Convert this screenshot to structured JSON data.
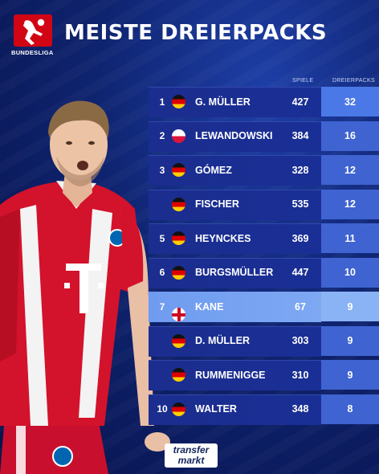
{
  "brand": {
    "logo_text": "BUNDESLIGA"
  },
  "title": "MEISTE DREIERPACKS",
  "columns": {
    "games": "SPIELE",
    "hattricks": "DREIERPACKS"
  },
  "rows": [
    {
      "rank": "1",
      "flag": "germany-flag-icon",
      "name": "G. MÜLLER",
      "games": "427",
      "hattricks": "32"
    },
    {
      "rank": "2",
      "flag": "poland-flag-icon",
      "name": "LEWANDOWSKI",
      "games": "384",
      "hattricks": "16"
    },
    {
      "rank": "3",
      "flag": "germany-flag-icon",
      "name": "GÓMEZ",
      "games": "328",
      "hattricks": "12"
    },
    {
      "rank": "",
      "flag": "germany-flag-icon",
      "name": "FISCHER",
      "games": "535",
      "hattricks": "12"
    },
    {
      "rank": "5",
      "flag": "germany-flag-icon",
      "name": "HEYNCKES",
      "games": "369",
      "hattricks": "11"
    },
    {
      "rank": "6",
      "flag": "germany-flag-icon",
      "name": "BURGSMÜLLER",
      "games": "447",
      "hattricks": "10"
    },
    {
      "rank": "7",
      "flag": "england-flag-icon",
      "name": "KANE",
      "games": "67",
      "hattricks": "9"
    },
    {
      "rank": "",
      "flag": "germany-flag-icon",
      "name": "D. MÜLLER",
      "games": "303",
      "hattricks": "9"
    },
    {
      "rank": "",
      "flag": "germany-flag-icon",
      "name": "RUMMENIGGE",
      "games": "310",
      "hattricks": "9"
    },
    {
      "rank": "10",
      "flag": "germany-flag-icon",
      "name": "WALTER",
      "games": "348",
      "hattricks": "8"
    }
  ],
  "footer": {
    "logo_line1": "transfer",
    "logo_line2": "markt"
  },
  "colors": {
    "background": "#0f2470",
    "accent_red": "#d20515",
    "highlight": "#7ea8f2",
    "hattrick_column": "#3f63d1"
  }
}
